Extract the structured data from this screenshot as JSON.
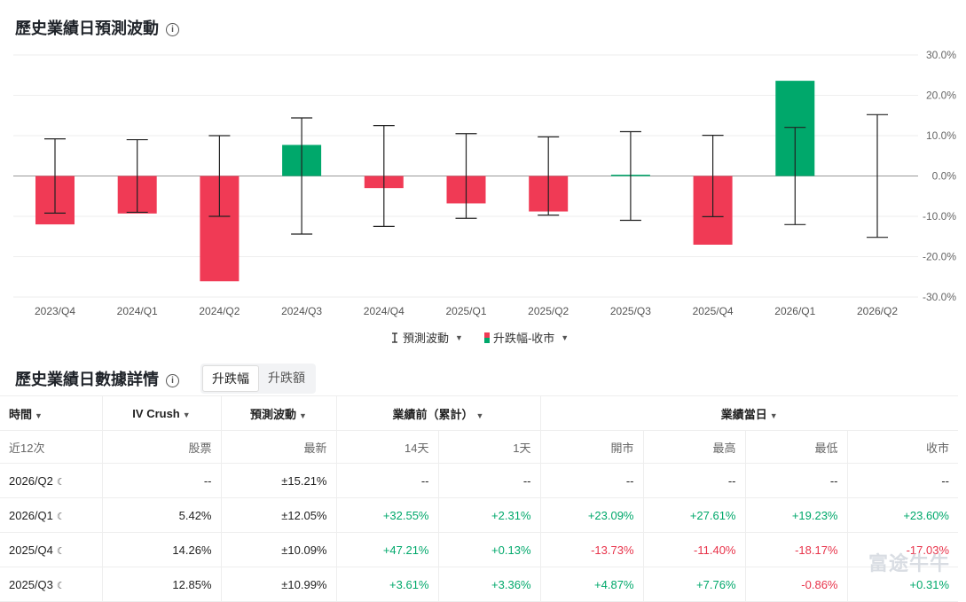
{
  "section1": {
    "title": "歷史業績日預測波動"
  },
  "chart_data": {
    "type": "bar",
    "categories": [
      "2023/Q4",
      "2024/Q1",
      "2024/Q2",
      "2024/Q3",
      "2024/Q4",
      "2025/Q1",
      "2025/Q2",
      "2025/Q3",
      "2025/Q4",
      "2026/Q1",
      "2026/Q2"
    ],
    "series": [
      {
        "name": "升跌幅-收市",
        "values": [
          -12.0,
          -9.3,
          -26.1,
          7.7,
          -3.0,
          -6.8,
          -8.8,
          0.31,
          -17.03,
          23.6,
          null
        ]
      },
      {
        "name": "預測波動",
        "values": [
          9.2,
          9.0,
          10.0,
          14.4,
          12.5,
          10.5,
          9.7,
          10.99,
          10.09,
          12.05,
          15.21
        ]
      }
    ],
    "yticks": [
      "30.0%",
      "20.0%",
      "10.0%",
      "0.0%",
      "-10.0%",
      "-20.0%",
      "-30.0%"
    ],
    "ylim": [
      -30,
      30
    ],
    "colors": {
      "up": "#00a86b",
      "down": "#f03a55",
      "errorbar": "#222222"
    }
  },
  "legend": {
    "forecast": "預測波動",
    "change": "升跌幅-收市"
  },
  "section2": {
    "title": "歷史業績日數據詳情",
    "tabs": [
      "升跌幅",
      "升跌額"
    ],
    "active_tab": "升跌幅"
  },
  "table": {
    "headers": {
      "time": "時間",
      "iv": "IV Crush",
      "forecast": "預測波動",
      "before": "業績前（累計）",
      "day": "業績當日"
    },
    "sub": {
      "period": "近12次",
      "stock": "股票",
      "latest": "最新",
      "d14": "14天",
      "d1": "1天",
      "open": "開市",
      "high": "最高",
      "low": "最低",
      "close": "收市"
    },
    "rows": [
      {
        "q": "2026/Q2",
        "iv": "--",
        "fc": "±15.21%",
        "d14": "--",
        "d1": "--",
        "open": "--",
        "high": "--",
        "low": "--",
        "close": "--"
      },
      {
        "q": "2026/Q1",
        "iv": "5.42%",
        "fc": "±12.05%",
        "d14": "+32.55%",
        "d1": "+2.31%",
        "open": "+23.09%",
        "high": "+27.61%",
        "low": "+19.23%",
        "close": "+23.60%"
      },
      {
        "q": "2025/Q4",
        "iv": "14.26%",
        "fc": "±10.09%",
        "d14": "+47.21%",
        "d1": "+0.13%",
        "open": "-13.73%",
        "high": "-11.40%",
        "low": "-18.17%",
        "close": "-17.03%"
      },
      {
        "q": "2025/Q3",
        "iv": "12.85%",
        "fc": "±10.99%",
        "d14": "+3.61%",
        "d1": "+3.36%",
        "open": "+4.87%",
        "high": "+7.76%",
        "low": "-0.86%",
        "close": "+0.31%"
      }
    ]
  },
  "watermark": "富途牛牛"
}
